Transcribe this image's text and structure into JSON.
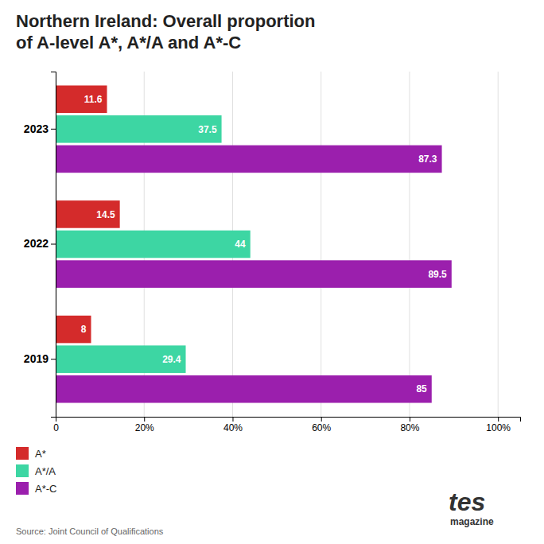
{
  "chart_data": {
    "type": "bar",
    "orientation": "horizontal",
    "title": "Northern Ireland: Overall proportion\nof A-level A*, A*/A and A*-C",
    "categories": [
      "2023",
      "2022",
      "2019"
    ],
    "series": [
      {
        "name": "A*",
        "color": "#d42b2b",
        "values": [
          11.6,
          14.5,
          8
        ]
      },
      {
        "name": "A*/A",
        "color": "#3dd6a3",
        "values": [
          37.5,
          44,
          29.4
        ]
      },
      {
        "name": "A*-C",
        "color": "#9b1fad",
        "values": [
          87.3,
          89.5,
          85
        ]
      }
    ],
    "xlim": [
      0,
      105
    ],
    "xticks": [
      0,
      {
        "value": 20,
        "label": "20%"
      },
      {
        "value": 40,
        "label": "40%"
      },
      {
        "value": 60,
        "label": "60%"
      },
      {
        "value": 80,
        "label": "80%"
      },
      {
        "value": 100,
        "label": "100%"
      }
    ],
    "grid": true,
    "data_labels": true,
    "legend": "bottom-left",
    "annotations": [
      "Source: Joint Council of Qualifications",
      "tes",
      "magazine"
    ]
  }
}
